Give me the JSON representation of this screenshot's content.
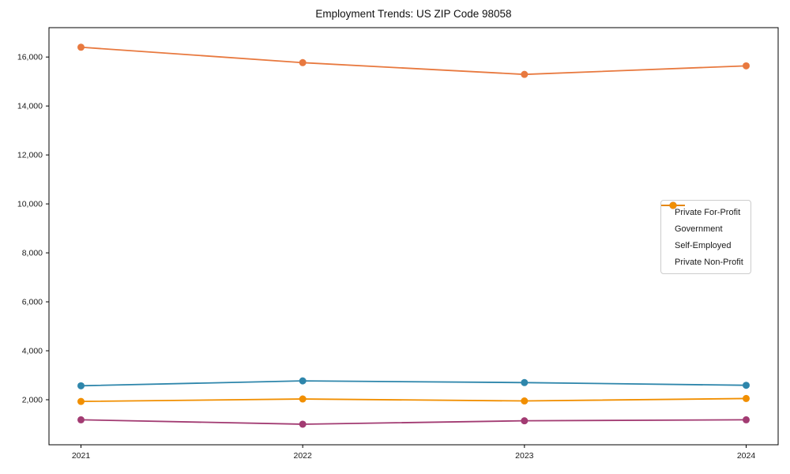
{
  "chart_data": {
    "type": "line",
    "title": "Employment Trends: US ZIP Code 98058",
    "x_labels": [
      "2021",
      "2022",
      "2023",
      "2024"
    ],
    "series": [
      {
        "name": "Private For-Profit",
        "color": "#E8793F",
        "values": [
          16400,
          15770,
          15290,
          15640
        ]
      },
      {
        "name": "Government",
        "color": "#2E86AB",
        "values": [
          2570,
          2770,
          2700,
          2590
        ]
      },
      {
        "name": "Self-Employed",
        "color": "#A23B72",
        "values": [
          1180,
          1000,
          1140,
          1180
        ]
      },
      {
        "name": "Private Non-Profit",
        "color": "#F18F01",
        "values": [
          1930,
          2030,
          1950,
          2050
        ]
      }
    ],
    "xlabel": "",
    "ylabel": "",
    "ylim": [
      160,
      17200
    ],
    "yticks": [
      2000,
      4000,
      6000,
      8000,
      10000,
      12000,
      14000,
      16000
    ],
    "ytick_labels": [
      "2,000",
      "4,000",
      "6,000",
      "8,000",
      "10,000",
      "12,000",
      "14,000",
      "16,000"
    ],
    "grid": false,
    "legend_position": "center-right",
    "axis_color": "#000000",
    "tick_label_color": "#1a1a1a"
  }
}
